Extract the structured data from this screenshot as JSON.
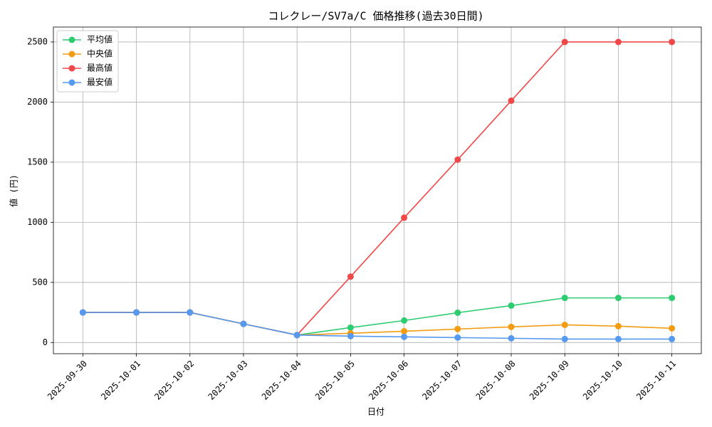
{
  "chart_data": {
    "type": "line",
    "title": "コレクレー/SV7a/C 価格推移(過去30日間)",
    "x_label": "日付",
    "y_label": "値 (円)",
    "categories": [
      "2025-09-30",
      "2025-10-01",
      "2025-10-02",
      "2025-10-03",
      "2025-10-04",
      "2025-10-05",
      "2025-10-06",
      "2025-10-07",
      "2025-10-08",
      "2025-10-09",
      "2025-10-10",
      "2025-10-11"
    ],
    "series": [
      {
        "name": "平均値",
        "color": "#2ecc71",
        "values": [
          250,
          250,
          250,
          155,
          62,
          124,
          183,
          248,
          307,
          371,
          371,
          371
        ]
      },
      {
        "name": "中央値",
        "color": "#f39c12",
        "values": [
          250,
          250,
          250,
          155,
          62,
          77,
          94,
          112,
          130,
          147,
          136,
          118
        ]
      },
      {
        "name": "最高値",
        "color": "#f04848",
        "values": [
          250,
          250,
          250,
          155,
          62,
          548,
          1038,
          1521,
          2011,
          2500,
          2500,
          2500
        ]
      },
      {
        "name": "最安値",
        "color": "#5599f0",
        "values": [
          250,
          250,
          250,
          155,
          62,
          53,
          47,
          41,
          35,
          29,
          29,
          29
        ]
      }
    ],
    "ylim": [
      -93,
      2624
    ],
    "yticks": [
      0,
      500,
      1000,
      1500,
      2000,
      2500
    ],
    "grid": true,
    "legend": "upper-left"
  }
}
